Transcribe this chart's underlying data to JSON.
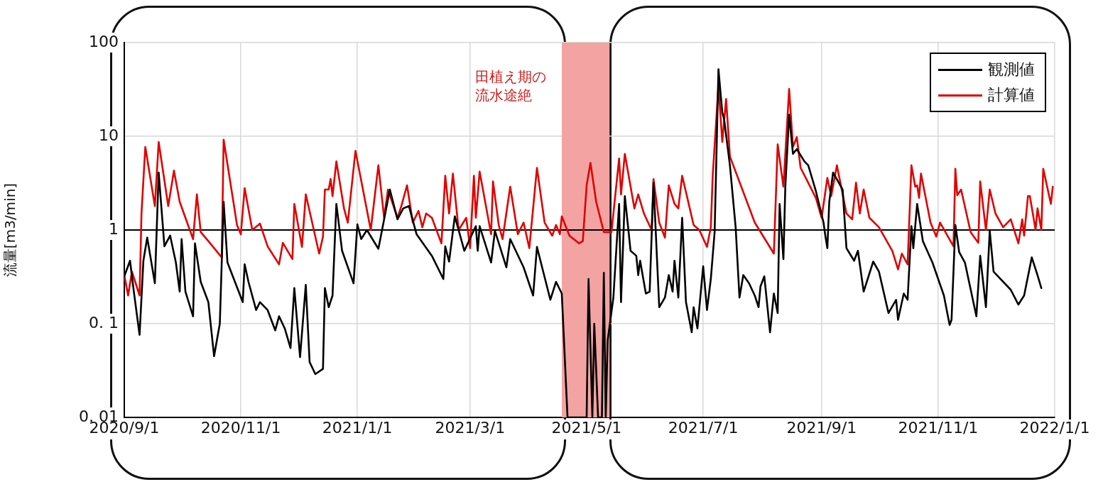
{
  "chart_data": {
    "type": "line",
    "ylabel": "流量[m3/min]",
    "log": "y",
    "grid": true,
    "legend": "top right",
    "marker": "none",
    "line_style": "solid",
    "xlim": [
      "2020-09-01",
      "2022-01-01"
    ],
    "xticks": [
      {
        "value": "2020-09-01",
        "label": "2020/9/1"
      },
      {
        "value": "2020-11-01",
        "label": "2020/11/1"
      },
      {
        "value": "2021-01-01",
        "label": "2021/1/1"
      },
      {
        "value": "2021-03-01",
        "label": "2021/3/1"
      },
      {
        "value": "2021-05-01",
        "label": "2021/5/1"
      },
      {
        "value": "2021-07-01",
        "label": "2021/7/1"
      },
      {
        "value": "2021-09-01",
        "label": "2021/9/1"
      },
      {
        "value": "2021-11-01",
        "label": "2021/11/1"
      },
      {
        "value": "2022-01-01",
        "label": "2022/1/1"
      }
    ],
    "ylim": [
      0.01,
      100
    ],
    "yticks": [
      {
        "value": 0.01,
        "label": "0. 01"
      },
      {
        "value": 0.1,
        "label": "0. 1"
      },
      1,
      10,
      100
    ],
    "ref_lines": [
      {
        "axis": "y",
        "value": 1,
        "color": "#000000"
      }
    ],
    "bands": [
      {
        "axis": "x",
        "from": "2021-04-18",
        "to": "2021-05-13",
        "label": "田植え期の流水途絶",
        "color": "#f4a3a3"
      }
    ],
    "series": [
      {
        "name": "観測値",
        "color": "#000000",
        "x": [
          "2020-09-01",
          "2020-09-04",
          "2020-09-06",
          "2020-09-09",
          "2020-09-11",
          "2020-09-13",
          "2020-09-17",
          "2020-09-19",
          "2020-09-22",
          "2020-09-25",
          "2020-09-28",
          "2020-09-30",
          "2020-10-01",
          "2020-10-03",
          "2020-10-07",
          "2020-10-08",
          "2020-10-11",
          "2020-10-15",
          "2020-10-18",
          "2020-10-21",
          "2020-10-23",
          "2020-10-25",
          "2020-11-02",
          "2020-11-03",
          "2020-11-05",
          "2020-11-09",
          "2020-11-11",
          "2020-11-15",
          "2020-11-19",
          "2020-11-21",
          "2020-11-24",
          "2020-11-27",
          "2020-11-29",
          "2020-12-02",
          "2020-12-05",
          "2020-12-07",
          "2020-12-10",
          "2020-12-14",
          "2020-12-15",
          "2020-12-17",
          "2020-12-19",
          "2020-12-21",
          "2020-12-24",
          "2020-12-30",
          "2021-01-01",
          "2021-01-03",
          "2021-01-06",
          "2021-01-12",
          "2021-01-15",
          "2021-01-18",
          "2021-01-22",
          "2021-01-25",
          "2021-01-28",
          "2021-02-01",
          "2021-02-09",
          "2021-02-15",
          "2021-02-16",
          "2021-02-18",
          "2021-02-21",
          "2021-02-26",
          "2021-03-04",
          "2021-03-05",
          "2021-03-06",
          "2021-03-12",
          "2021-03-14",
          "2021-03-20",
          "2021-03-22",
          "2021-03-29",
          "2021-04-03",
          "2021-04-05",
          "2021-04-12",
          "2021-04-15",
          "2021-04-18",
          "2021-04-21",
          "2021-05-01",
          "2021-05-02",
          "2021-05-04",
          "2021-05-05",
          "2021-05-07",
          "2021-05-09",
          "2021-05-10",
          "2021-05-11",
          "2021-05-12",
          "2021-05-15",
          "2021-05-18",
          "2021-05-19",
          "2021-05-21",
          "2021-05-24",
          "2021-05-27",
          "2021-05-28",
          "2021-05-29",
          "2021-06-01",
          "2021-06-03",
          "2021-06-05",
          "2021-06-08",
          "2021-06-11",
          "2021-06-13",
          "2021-06-15",
          "2021-06-16",
          "2021-06-18",
          "2021-06-20",
          "2021-06-22",
          "2021-06-25",
          "2021-06-26",
          "2021-06-28",
          "2021-07-01",
          "2021-07-03",
          "2021-07-05",
          "2021-07-07",
          "2021-07-09",
          "2021-07-11",
          "2021-07-12",
          "2021-07-15",
          "2021-07-18",
          "2021-07-20",
          "2021-07-22",
          "2021-07-25",
          "2021-07-28",
          "2021-07-30",
          "2021-07-31",
          "2021-08-02",
          "2021-08-05",
          "2021-08-07",
          "2021-08-09",
          "2021-08-10",
          "2021-08-12",
          "2021-08-13",
          "2021-08-15",
          "2021-08-17",
          "2021-08-19",
          "2021-08-23",
          "2021-08-25",
          "2021-08-29",
          "2021-09-02",
          "2021-09-03",
          "2021-09-04",
          "2021-09-05",
          "2021-09-07",
          "2021-09-12",
          "2021-09-14",
          "2021-09-18",
          "2021-09-20",
          "2021-09-23",
          "2021-09-28",
          "2021-10-01",
          "2021-10-06",
          "2021-10-10",
          "2021-10-11",
          "2021-10-14",
          "2021-10-16",
          "2021-10-18",
          "2021-10-19",
          "2021-10-21",
          "2021-10-24",
          "2021-10-29",
          "2021-11-04",
          "2021-11-07",
          "2021-11-08",
          "2021-11-10",
          "2021-11-12",
          "2021-11-15",
          "2021-11-21",
          "2021-11-23",
          "2021-11-26",
          "2021-11-28",
          "2021-11-30",
          "2021-12-05",
          "2021-12-09",
          "2021-12-13",
          "2021-12-16",
          "2021-12-20",
          "2021-12-23",
          "2021-12-25"
        ],
        "values": [
          0.32,
          0.47,
          0.22,
          0.076,
          0.47,
          0.83,
          0.27,
          4.1,
          0.67,
          0.87,
          0.45,
          0.22,
          0.8,
          0.22,
          0.12,
          0.72,
          0.28,
          0.17,
          0.045,
          0.1,
          2.0,
          0.45,
          0.17,
          0.43,
          0.28,
          0.14,
          0.17,
          0.14,
          0.085,
          0.12,
          0.089,
          0.055,
          0.24,
          0.044,
          0.26,
          0.039,
          0.029,
          0.033,
          0.24,
          0.15,
          0.2,
          1.9,
          0.6,
          0.27,
          1.15,
          0.8,
          1.0,
          0.63,
          1.3,
          2.7,
          1.3,
          1.7,
          1.8,
          0.9,
          0.53,
          0.3,
          0.67,
          0.46,
          1.4,
          0.6,
          1.1,
          0.6,
          1.1,
          0.45,
          0.98,
          0.4,
          0.8,
          0.4,
          0.2,
          0.66,
          0.18,
          0.28,
          0.21,
          0.01,
          0.01,
          0.3,
          0.01,
          0.1,
          0.01,
          0.01,
          0.35,
          0.01,
          0.066,
          0.19,
          1.9,
          0.17,
          2.3,
          0.6,
          0.53,
          0.33,
          0.47,
          0.21,
          0.22,
          3.2,
          0.15,
          0.19,
          0.33,
          0.22,
          0.47,
          0.19,
          1.35,
          0.17,
          0.081,
          0.15,
          0.089,
          0.41,
          0.14,
          0.3,
          0.95,
          52,
          18,
          15,
          4.9,
          1.07,
          0.19,
          0.33,
          0.27,
          0.2,
          0.15,
          0.25,
          0.32,
          0.081,
          0.21,
          0.13,
          1.9,
          0.49,
          2.9,
          17,
          6.5,
          7.3,
          5.4,
          4.9,
          2.6,
          1.2,
          0.85,
          0.64,
          2.0,
          4.1,
          2.7,
          0.64,
          0.47,
          0.6,
          0.22,
          0.46,
          0.36,
          0.13,
          0.18,
          0.11,
          0.21,
          0.18,
          1.1,
          0.64,
          1.9,
          0.76,
          0.45,
          0.2,
          0.097,
          0.11,
          1.13,
          0.58,
          0.45,
          0.12,
          0.53,
          0.15,
          0.98,
          0.36,
          0.28,
          0.23,
          0.16,
          0.2,
          0.51,
          0.33,
          0.24
        ]
      },
      {
        "name": "計算値",
        "color": "#e00000",
        "x": [
          "2020-09-01",
          "2020-09-03",
          "2020-09-05",
          "2020-09-09",
          "2020-09-10",
          "2020-09-12",
          "2020-09-17",
          "2020-09-19",
          "2020-09-24",
          "2020-09-27",
          "2020-09-30",
          "2020-10-07",
          "2020-10-09",
          "2020-10-11",
          "2020-10-16",
          "2020-10-22",
          "2020-10-23",
          "2020-10-30",
          "2020-11-01",
          "2020-11-03",
          "2020-11-07",
          "2020-11-11",
          "2020-11-15",
          "2020-11-21",
          "2020-11-23",
          "2020-11-28",
          "2020-11-29",
          "2020-12-03",
          "2020-12-05",
          "2020-12-12",
          "2020-12-14",
          "2020-12-15",
          "2020-12-17",
          "2020-12-18",
          "2020-12-19",
          "2020-12-21",
          "2020-12-25",
          "2020-12-27",
          "2020-12-31",
          "2021-01-08",
          "2021-01-12",
          "2021-01-15",
          "2021-01-17",
          "2021-01-22",
          "2021-01-24",
          "2021-01-27",
          "2021-01-30",
          "2021-02-02",
          "2021-02-04",
          "2021-02-06",
          "2021-02-09",
          "2021-02-14",
          "2021-02-16",
          "2021-02-18",
          "2021-02-20",
          "2021-02-23",
          "2021-02-27",
          "2021-03-01",
          "2021-03-03",
          "2021-03-04",
          "2021-03-06",
          "2021-03-12",
          "2021-03-13",
          "2021-03-16",
          "2021-03-18",
          "2021-03-22",
          "2021-03-26",
          "2021-03-29",
          "2021-04-01",
          "2021-04-05",
          "2021-04-09",
          "2021-04-13",
          "2021-04-15",
          "2021-04-17",
          "2021-04-18",
          "2021-04-22",
          "2021-04-27",
          "2021-04-29",
          "2021-05-01",
          "2021-05-03",
          "2021-05-06",
          "2021-05-10",
          "2021-05-14",
          "2021-05-18",
          "2021-05-19",
          "2021-05-21",
          "2021-05-26",
          "2021-05-28",
          "2021-05-31",
          "2021-06-04",
          "2021-06-05",
          "2021-06-08",
          "2021-06-11",
          "2021-06-13",
          "2021-06-16",
          "2021-06-18",
          "2021-06-20",
          "2021-06-26",
          "2021-06-29",
          "2021-07-03",
          "2021-07-05",
          "2021-07-06",
          "2021-07-09",
          "2021-07-11",
          "2021-07-13",
          "2021-07-15",
          "2021-07-28",
          "2021-08-07",
          "2021-08-09",
          "2021-08-12",
          "2021-08-15",
          "2021-08-17",
          "2021-08-19",
          "2021-08-21",
          "2021-08-24",
          "2021-08-29",
          "2021-09-01",
          "2021-09-04",
          "2021-09-06",
          "2021-09-09",
          "2021-09-14",
          "2021-09-17",
          "2021-09-19",
          "2021-09-21",
          "2021-09-23",
          "2021-09-26",
          "2021-10-01",
          "2021-10-08",
          "2021-10-11",
          "2021-10-13",
          "2021-10-16",
          "2021-10-18",
          "2021-10-20",
          "2021-10-21",
          "2021-10-22",
          "2021-10-23",
          "2021-10-28",
          "2021-10-31",
          "2021-11-02",
          "2021-11-09",
          "2021-11-10",
          "2021-11-11",
          "2021-11-13",
          "2021-11-18",
          "2021-11-22",
          "2021-11-23",
          "2021-11-26",
          "2021-11-28",
          "2021-12-01",
          "2021-12-05",
          "2021-12-09",
          "2021-12-13",
          "2021-12-15",
          "2021-12-16",
          "2021-12-18",
          "2021-12-19",
          "2021-12-22",
          "2021-12-23",
          "2021-12-25",
          "2021-12-26",
          "2021-12-30",
          "2021-12-31"
        ],
        "values": [
          0.33,
          0.2,
          0.36,
          0.2,
          1.5,
          7.7,
          1.8,
          8.7,
          1.8,
          4.3,
          2.0,
          0.8,
          2.4,
          0.95,
          0.72,
          0.51,
          9.2,
          1.13,
          0.9,
          2.8,
          1.0,
          1.17,
          0.67,
          0.43,
          0.73,
          0.49,
          1.9,
          0.66,
          2.4,
          0.56,
          0.85,
          2.7,
          2.7,
          3.5,
          2.3,
          5.4,
          1.7,
          1.2,
          7.0,
          1.0,
          4.9,
          1.35,
          2.7,
          1.35,
          1.8,
          3.0,
          1.2,
          1.6,
          1.07,
          1.5,
          1.35,
          0.72,
          3.8,
          1.5,
          4.0,
          1.0,
          1.35,
          0.64,
          3.8,
          1.35,
          4.2,
          0.9,
          3.3,
          1.13,
          0.8,
          2.9,
          0.9,
          1.2,
          0.64,
          4.6,
          1.2,
          0.87,
          1.13,
          0.9,
          1.4,
          0.87,
          0.72,
          0.76,
          3.0,
          5.2,
          2.0,
          0.95,
          0.95,
          5.8,
          2.4,
          6.5,
          1.7,
          2.4,
          1.5,
          1.0,
          3.5,
          1.2,
          0.83,
          3.0,
          1.9,
          1.7,
          3.8,
          1.13,
          1.0,
          0.66,
          1.07,
          3.8,
          35,
          8.7,
          25,
          6.1,
          1.2,
          0.56,
          8.2,
          2.9,
          32,
          7.7,
          9.8,
          4.6,
          3.5,
          2.2,
          1.35,
          3.6,
          2.3,
          4.9,
          1.5,
          1.3,
          3.2,
          1.5,
          2.7,
          1.35,
          1.07,
          0.6,
          0.38,
          0.56,
          0.43,
          4.9,
          2.9,
          3.0,
          2.2,
          4.0,
          1.2,
          0.85,
          1.2,
          0.67,
          4.5,
          2.35,
          2.7,
          0.95,
          0.73,
          3.3,
          1.0,
          2.7,
          1.5,
          1.07,
          1.3,
          0.72,
          1.3,
          0.87,
          2.3,
          2.3,
          1.0,
          1.7,
          1.0,
          4.5,
          1.9,
          2.9
        ]
      }
    ]
  }
}
